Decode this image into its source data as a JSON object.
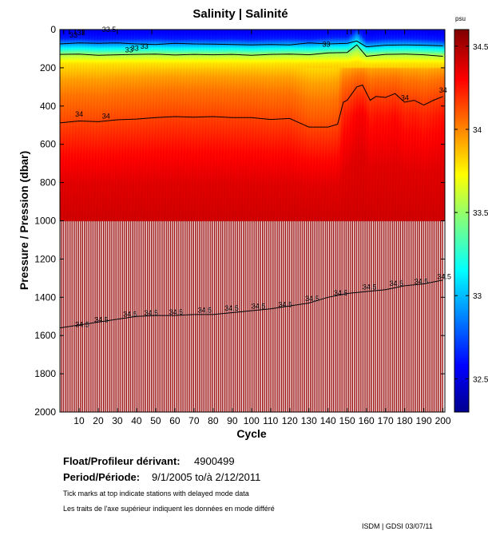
{
  "chart_data": {
    "type": "heatmap",
    "title": "Salinity | Salinité",
    "xlabel": "Cycle",
    "ylabel": "Pressure / Pression (dbar)",
    "xlim": [
      0,
      201
    ],
    "ylim": [
      2000,
      0
    ],
    "x_ticks": [
      10,
      20,
      30,
      40,
      50,
      60,
      70,
      80,
      90,
      100,
      110,
      120,
      130,
      140,
      150,
      160,
      170,
      180,
      190,
      200
    ],
    "y_ticks": [
      0,
      200,
      400,
      600,
      800,
      1000,
      1200,
      1400,
      1600,
      1800,
      2000
    ],
    "colorbar": {
      "unit": "psu",
      "range": [
        32.3,
        34.6
      ],
      "ticks": [
        32.5,
        33,
        33.5,
        34,
        34.5
      ],
      "tick_labels": [
        "32.5",
        "33",
        "33.5",
        "34",
        "34.5"
      ]
    },
    "contours": [
      {
        "level": 33.0,
        "label": "33",
        "cycles": [
          0,
          10,
          20,
          30,
          40,
          50,
          60,
          70,
          80,
          90,
          100,
          110,
          120,
          130,
          140,
          150,
          155,
          160,
          170,
          180,
          190,
          200
        ],
        "pressure": [
          75,
          70,
          72,
          70,
          75,
          78,
          72,
          75,
          76,
          78,
          80,
          78,
          80,
          70,
          75,
          72,
          60,
          90,
          82,
          80,
          82,
          85
        ]
      },
      {
        "level": 33.5,
        "label": "33.5",
        "cycles": [
          0,
          10,
          20,
          30,
          40,
          50,
          60,
          70,
          80,
          90,
          100,
          110,
          120,
          130,
          140,
          150,
          155,
          160,
          170,
          180,
          190,
          200
        ],
        "pressure": [
          130,
          128,
          135,
          132,
          130,
          128,
          133,
          130,
          132,
          130,
          135,
          130,
          128,
          132,
          122,
          120,
          80,
          140,
          130,
          128,
          132,
          140
        ]
      },
      {
        "level": 34.0,
        "label": "34",
        "cycles": [
          0,
          10,
          20,
          30,
          40,
          50,
          60,
          70,
          80,
          90,
          100,
          110,
          120,
          130,
          140,
          145,
          148,
          150,
          155,
          158,
          162,
          165,
          170,
          175,
          180,
          185,
          190,
          195,
          200
        ],
        "pressure": [
          488,
          478,
          482,
          472,
          468,
          460,
          455,
          458,
          455,
          460,
          460,
          470,
          465,
          510,
          510,
          495,
          380,
          370,
          300,
          290,
          370,
          350,
          355,
          335,
          380,
          370,
          395,
          370,
          350
        ]
      },
      {
        "level": 34.5,
        "label": "34.5",
        "cycles": [
          0,
          10,
          20,
          30,
          40,
          50,
          60,
          70,
          80,
          90,
          100,
          110,
          120,
          130,
          140,
          150,
          160,
          170,
          180,
          190,
          200
        ],
        "pressure": [
          1560,
          1545,
          1530,
          1515,
          1500,
          1495,
          1495,
          1490,
          1490,
          1480,
          1470,
          1460,
          1445,
          1430,
          1400,
          1380,
          1370,
          1360,
          1340,
          1330,
          1310
        ]
      }
    ],
    "contour_labels": [
      {
        "text": "33",
        "x": 5,
        "y": 42
      },
      {
        "text": "33",
        "x": 9,
        "y": 30
      },
      {
        "text": "33.5",
        "x": 22,
        "y": 12
      },
      {
        "text": "33",
        "x": 34,
        "y": 120
      },
      {
        "text": "33",
        "x": 37,
        "y": 110
      },
      {
        "text": "33",
        "x": 42,
        "y": 100
      },
      {
        "text": "33",
        "x": 137,
        "y": 90
      },
      {
        "text": "34",
        "x": 8,
        "y": 455
      },
      {
        "text": "34",
        "x": 22,
        "y": 465
      },
      {
        "text": "34",
        "x": 178,
        "y": 370
      },
      {
        "text": "34",
        "x": 198,
        "y": 330
      },
      {
        "text": "34.5",
        "x": 8,
        "y": 1555
      },
      {
        "text": "34.5",
        "x": 18,
        "y": 1530
      },
      {
        "text": "34.5",
        "x": 33,
        "y": 1500
      },
      {
        "text": "34.5",
        "x": 44,
        "y": 1495
      },
      {
        "text": "34.5",
        "x": 57,
        "y": 1490
      },
      {
        "text": "34.5",
        "x": 72,
        "y": 1480
      },
      {
        "text": "34.5",
        "x": 86,
        "y": 1470
      },
      {
        "text": "34.5",
        "x": 100,
        "y": 1460
      },
      {
        "text": "34.5",
        "x": 114,
        "y": 1450
      },
      {
        "text": "34.5",
        "x": 128,
        "y": 1420
      },
      {
        "text": "34.5",
        "x": 143,
        "y": 1390
      },
      {
        "text": "34.5",
        "x": 158,
        "y": 1360
      },
      {
        "text": "34.5",
        "x": 172,
        "y": 1340
      },
      {
        "text": "34.5",
        "x": 185,
        "y": 1330
      },
      {
        "text": "34.5",
        "x": 197,
        "y": 1305
      }
    ],
    "surface_field": {
      "pressure": [
        0,
        45,
        75,
        105,
        130,
        175,
        250,
        330,
        420,
        520,
        650,
        800,
        1000
      ],
      "salinity": [
        32.55,
        32.65,
        32.95,
        33.25,
        33.55,
        33.8,
        33.95,
        34.05,
        34.12,
        34.2,
        34.3,
        34.38,
        34.42
      ]
    },
    "deep_salinity": 34.55,
    "deep_data_cycles": [
      1,
      6,
      11,
      16,
      21,
      26,
      31,
      36,
      41,
      46,
      51,
      56,
      61,
      66,
      71,
      76,
      81,
      86,
      91,
      96,
      101,
      106,
      111,
      116,
      121,
      126,
      131,
      136,
      141,
      146,
      151,
      156,
      161,
      166,
      171,
      176,
      181,
      186,
      191,
      196
    ],
    "delayed_mode_ticks": [
      2,
      5,
      8,
      12,
      30,
      48,
      100,
      140,
      150,
      152,
      156,
      160,
      170,
      180
    ]
  },
  "info": {
    "float_label": "Float/Profileur dérivant:",
    "float_id": "4900499",
    "period_label": "Period/Période:",
    "period_value": "9/1/2005  to/à  2/12/2011",
    "note_en": "Tick marks at top indicate stations with delayed mode data",
    "note_fr": "Les traits de l'axe supérieur indiquent les données en mode différé",
    "footer": "ISDM | GDSI  03/07/11"
  },
  "colors": {
    "deep_red": "#aa0a0a",
    "frame": "#000000",
    "background": "#ffffff"
  }
}
